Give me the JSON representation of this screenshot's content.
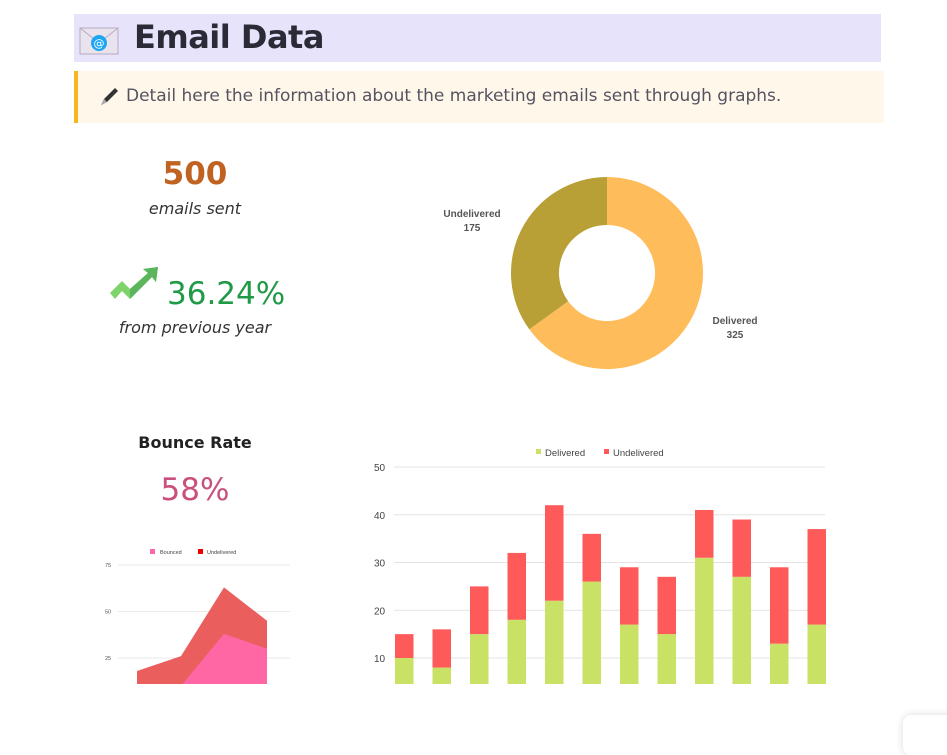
{
  "header": {
    "title": "Email Data",
    "icon": "envelope-at-icon",
    "background": "#e6e3fb"
  },
  "callout": {
    "icon": "pen-icon",
    "text": "Detail here the information about the marketing emails sent through graphs.",
    "accent": "#f7b61c"
  },
  "stats": {
    "emails_sent": {
      "value": "500",
      "label": "emails sent",
      "color": "#c06220"
    },
    "growth": {
      "value": "36.24%",
      "label": "from previous year",
      "icon": "trending-up-icon",
      "color": "#219a48"
    },
    "bounce": {
      "title": "Bounce Rate",
      "value": "58%",
      "color": "#c9507c"
    }
  },
  "chart_data": [
    {
      "type": "pie",
      "donut": true,
      "slices": [
        {
          "label": "Delivered",
          "value": 325,
          "value_label": "325",
          "color": "#ffbc5a"
        },
        {
          "label": "Undelivered",
          "value": 175,
          "value_label": "175",
          "color": "#b8a037"
        }
      ]
    },
    {
      "type": "area",
      "legend": "top",
      "series": [
        {
          "name": "Bounced",
          "values": [
            0,
            10,
            38,
            30
          ],
          "color": "#ff66a8"
        },
        {
          "name": "Undelivered",
          "values": [
            18,
            26,
            63,
            45
          ],
          "color": "#e84848"
        }
      ],
      "yticks": [
        "25",
        "50",
        "75"
      ],
      "ylim": [
        11,
        80
      ],
      "grid": true
    },
    {
      "type": "bar",
      "stacked": true,
      "legend": "top",
      "series": [
        {
          "name": "Delivered",
          "values": [
            10,
            8,
            15,
            18,
            22,
            26,
            17,
            15,
            31,
            27,
            13,
            17
          ],
          "color": "#c9e265"
        },
        {
          "name": "Undelivered",
          "values": [
            5,
            8,
            10,
            14,
            20,
            10,
            12,
            12,
            10,
            12,
            16,
            20
          ],
          "color": "#ff5a5a"
        }
      ],
      "yticks": [
        "10",
        "20",
        "30",
        "40",
        "50"
      ],
      "ylim": [
        0,
        50
      ],
      "grid": true
    }
  ]
}
